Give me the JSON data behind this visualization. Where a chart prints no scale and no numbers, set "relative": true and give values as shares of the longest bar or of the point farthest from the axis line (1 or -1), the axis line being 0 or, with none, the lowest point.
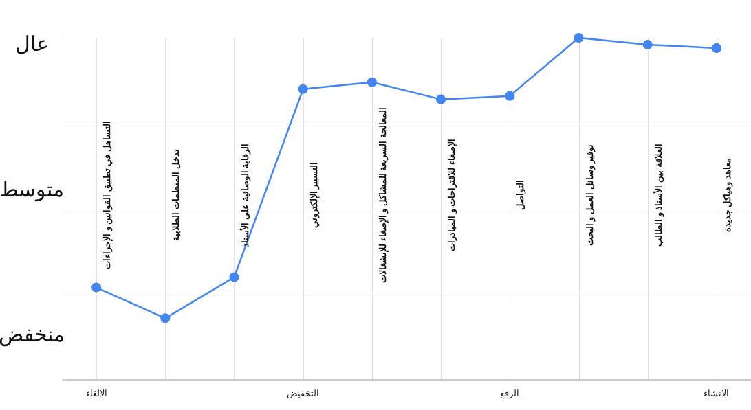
{
  "chart_data": {
    "type": "line",
    "relative": true,
    "categories": [
      "التساهل في تطبيق القوانين و الإجراءات",
      "تدخل المنظمات الطلابية",
      "الرقابة الوصائية على الأستاذ",
      "التسيير الإلكتروني",
      "المعالجة السريعة للمشاكل و الإصغاء للإنشغالات",
      "الإصغاء للاقتراحات و المبادرات",
      "التواصل",
      "توفير وسائل العمل و البحث",
      "العلاقة بين الأستاذ و الطالب",
      "معاهد وهياكل جديدة"
    ],
    "series": [
      {
        "color": "#4285f4",
        "values": [
          0.27,
          0.18,
          0.3,
          0.85,
          0.87,
          0.82,
          0.83,
          1,
          0.98,
          0.97
        ]
      }
    ],
    "annotations": [
      "عال",
      "متوسط",
      "منخفض",
      "الالغاء",
      "التخفيض",
      "الرفع",
      "الانشاء"
    ],
    "grid": true,
    "marker": "circle",
    "line_style": "solid"
  }
}
